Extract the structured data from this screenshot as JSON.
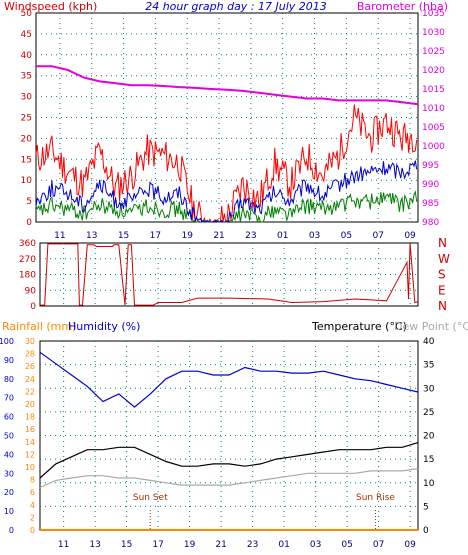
{
  "header": {
    "windspeed_label": "Windspeed (kph)",
    "title": "24 hour graph day : 17 July 2013",
    "barometer_label": "Barometer (hba)"
  },
  "footer_labels": {
    "rainfall": "Rainfall (mm)",
    "humidity": "Humidity (%)",
    "temperature": "Temperature (°C)",
    "dewpoint": "Dew Point (°C)",
    "sunset": "Sun Set",
    "sunrise": "Sun Rise"
  },
  "colors": {
    "background": "#ffffff",
    "wind_label": "#cc0000",
    "title": "#0000cc",
    "barometer": "#e000e0",
    "wind_gust": "#ff0000",
    "wind_avg": "#0000cc",
    "wind_low": "#008000",
    "direction": "#cc0000",
    "humidity": "#0000cc",
    "temperature": "#000000",
    "dewpoint": "#aaaaaa",
    "rainfall": "#ff8800",
    "grid": "#008080",
    "tick_blue": "#000080"
  },
  "chart_data": [
    {
      "type": "line",
      "name": "wind_barometer",
      "x_ticks": [
        "11",
        "13",
        "15",
        "17",
        "19",
        "21",
        "23",
        "01",
        "03",
        "05",
        "07",
        "09"
      ],
      "x_hours": [
        0,
        1,
        2,
        3,
        4,
        5,
        6,
        7,
        8,
        9,
        10,
        11,
        12,
        13,
        14,
        15,
        16,
        17,
        18,
        19,
        20,
        21,
        22,
        23,
        24
      ],
      "left_axis": {
        "label": "Windspeed (kph)",
        "ylim": [
          0,
          50
        ],
        "ticks": [
          0,
          5,
          10,
          15,
          20,
          25,
          30,
          35,
          40,
          45,
          50
        ]
      },
      "right_axis": {
        "label": "Barometer (hba)",
        "ylim": [
          980,
          1035
        ],
        "ticks": [
          980,
          985,
          990,
          995,
          1000,
          1005,
          1010,
          1015,
          1020,
          1025,
          1030,
          1035
        ]
      },
      "series": [
        {
          "name": "Barometer",
          "axis": "right",
          "values": [
            1021,
            1021,
            1020,
            1018,
            1017,
            1016.5,
            1016,
            1016,
            1015.8,
            1015.5,
            1015.3,
            1015,
            1014.8,
            1014.5,
            1014,
            1013.5,
            1013,
            1012.5,
            1012.5,
            1012,
            1012,
            1012,
            1012,
            1011.5,
            1011
          ]
        },
        {
          "name": "Gust",
          "axis": "left",
          "values": [
            15,
            17,
            12,
            9,
            17,
            8,
            11,
            17,
            16,
            14,
            2,
            0,
            1,
            9,
            5,
            14,
            9,
            16,
            11,
            16,
            25,
            20,
            24,
            20,
            21
          ]
        },
        {
          "name": "Average",
          "axis": "left",
          "values": [
            5,
            8,
            7,
            4,
            9,
            5,
            5,
            8,
            6,
            7,
            1,
            0,
            0,
            5,
            3,
            7,
            5,
            9,
            6,
            9,
            11,
            12,
            13,
            12,
            14
          ]
        },
        {
          "name": "Low",
          "axis": "left",
          "values": [
            2,
            4,
            3,
            2,
            4,
            3,
            2,
            4,
            3,
            3,
            0,
            0,
            0,
            2,
            1,
            3,
            2,
            4,
            3,
            4,
            5,
            5,
            6,
            4,
            6
          ]
        }
      ]
    },
    {
      "type": "line",
      "name": "wind_direction",
      "y_ticks": [
        0,
        90,
        180,
        270,
        360
      ],
      "y_letters": [
        "N",
        "W",
        "S",
        "E",
        "N"
      ],
      "ylim": [
        0,
        360
      ],
      "series": [
        {
          "name": "Direction",
          "x": [
            0,
            0.3,
            0.5,
            1.5,
            2.4,
            2.5,
            2.7,
            3.0,
            3.4,
            3.6,
            4.6,
            4.7,
            5.0,
            5.4,
            5.6,
            5.8,
            6.0,
            6.2,
            6.5,
            7.2,
            7.5,
            9.0,
            10.0,
            12.0,
            14.5,
            16.0,
            18.0,
            20.0,
            22.0,
            23.3,
            23.4,
            23.5,
            23.8,
            24.0
          ],
          "values": [
            5,
            5,
            355,
            355,
            355,
            5,
            5,
            350,
            350,
            340,
            340,
            350,
            350,
            5,
            350,
            350,
            5,
            5,
            5,
            5,
            20,
            20,
            45,
            45,
            40,
            20,
            25,
            40,
            30,
            250,
            40,
            360,
            20,
            25
          ]
        }
      ]
    },
    {
      "type": "line",
      "name": "temperature_humidity",
      "x_ticks": [
        "11",
        "13",
        "15",
        "17",
        "19",
        "21",
        "23",
        "01",
        "03",
        "05",
        "07",
        "09"
      ],
      "x_hours": [
        0,
        1,
        2,
        3,
        4,
        5,
        6,
        7,
        8,
        9,
        10,
        11,
        12,
        13,
        14,
        15,
        16,
        17,
        18,
        19,
        20,
        21,
        22,
        23,
        24
      ],
      "humidity_axis": {
        "label": "Humidity (%)",
        "ylim": [
          0,
          100
        ],
        "ticks": [
          0,
          10,
          20,
          30,
          40,
          50,
          60,
          70,
          80,
          90,
          100
        ]
      },
      "rainfall_axis": {
        "label": "Rainfall (mm)",
        "ylim": [
          0,
          30
        ],
        "ticks": [
          0,
          2,
          4,
          6,
          8,
          10,
          12,
          14,
          16,
          18,
          20,
          22,
          24,
          26,
          28,
          30
        ]
      },
      "temperature_axis": {
        "label": "Temperature (°C)",
        "ylim": [
          0,
          40
        ],
        "ticks": [
          0,
          5,
          10,
          15,
          20,
          25,
          30,
          35,
          40
        ]
      },
      "markers": [
        {
          "label": "Sun Set",
          "hour": 7.0
        },
        {
          "label": "Sun Rise",
          "hour": 21.3
        }
      ],
      "series": [
        {
          "name": "Humidity",
          "axis": "humidity",
          "values": [
            94,
            88,
            82,
            76,
            68,
            72,
            65,
            72,
            80,
            84,
            84,
            82,
            82,
            86,
            84,
            84,
            83,
            83,
            84,
            82,
            80,
            79,
            77,
            75,
            73
          ]
        },
        {
          "name": "Temperature",
          "axis": "temperature",
          "values": [
            11,
            14,
            15.5,
            17,
            17,
            17.5,
            17.5,
            16,
            14.5,
            13.5,
            13.5,
            14,
            14,
            13.5,
            14,
            15,
            15.5,
            16,
            16.5,
            17,
            17,
            17,
            17.5,
            17.5,
            18.5
          ]
        },
        {
          "name": "Dew Point",
          "axis": "temperature",
          "values": [
            9,
            10.5,
            11,
            11.5,
            11.5,
            11,
            11,
            10.5,
            10,
            9.5,
            9.5,
            9.5,
            9.5,
            10,
            10.5,
            11,
            11.5,
            12,
            12,
            12,
            12,
            12.5,
            12.5,
            12.5,
            13
          ]
        },
        {
          "name": "Rainfall",
          "axis": "rainfall",
          "values": [
            0,
            0,
            0,
            0,
            0,
            0,
            0,
            0,
            0,
            0,
            0,
            0,
            0,
            0,
            0,
            0,
            0,
            0,
            0,
            0,
            0,
            0,
            0,
            0,
            0
          ]
        }
      ]
    }
  ]
}
